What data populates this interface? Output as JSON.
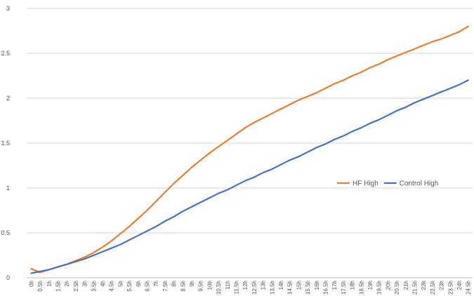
{
  "chart_data": {
    "type": "line",
    "title": "",
    "xlabel": "",
    "ylabel": "",
    "ylim": [
      0,
      3
    ],
    "yticks": [
      0,
      0.5,
      1,
      1.5,
      2,
      2.5,
      3
    ],
    "ytick_labels": [
      "0",
      "0.5",
      "1",
      "1.5",
      "2",
      "2.5",
      "3"
    ],
    "grid": "horizontal",
    "legend_position": "right",
    "categories": [
      "0h",
      "0.5h",
      "1h",
      "1.5h",
      "2h",
      "2.5h",
      "3h",
      "3.5h",
      "4h",
      "4.5h",
      "5h",
      "5.5h",
      "6h",
      "6.5h",
      "7h",
      "7.5h",
      "8h",
      "8.5h",
      "9h",
      "9.5h",
      "10h",
      "10.5h",
      "11h",
      "11.5h",
      "12h",
      "12.5h",
      "13h",
      "13.5h",
      "14h",
      "14.5h",
      "15h",
      "15.5h",
      "16h",
      "16.5h",
      "17h",
      "17.5h",
      "18h",
      "18.5h",
      "19h",
      "19.5h",
      "20h",
      "20.5h",
      "21h",
      "21.5h",
      "22h",
      "22.5h",
      "23h",
      "23.5h",
      "24h",
      "24.5h"
    ],
    "series": [
      {
        "name": "HF High",
        "color": "#ED7D31",
        "values": [
          0.1,
          0.06,
          0.09,
          0.12,
          0.15,
          0.19,
          0.23,
          0.28,
          0.34,
          0.41,
          0.49,
          0.57,
          0.66,
          0.75,
          0.85,
          0.95,
          1.05,
          1.14,
          1.23,
          1.31,
          1.39,
          1.46,
          1.53,
          1.6,
          1.67,
          1.73,
          1.78,
          1.83,
          1.88,
          1.93,
          1.98,
          2.02,
          2.06,
          2.11,
          2.16,
          2.2,
          2.25,
          2.29,
          2.34,
          2.38,
          2.43,
          2.47,
          2.51,
          2.55,
          2.59,
          2.63,
          2.66,
          2.7,
          2.74,
          2.8
        ]
      },
      {
        "name": "Control High",
        "color": "#4472C4",
        "values": [
          0.05,
          0.07,
          0.09,
          0.12,
          0.15,
          0.18,
          0.21,
          0.25,
          0.29,
          0.33,
          0.37,
          0.42,
          0.47,
          0.52,
          0.57,
          0.63,
          0.68,
          0.74,
          0.79,
          0.84,
          0.89,
          0.94,
          0.98,
          1.03,
          1.08,
          1.12,
          1.17,
          1.21,
          1.26,
          1.31,
          1.35,
          1.4,
          1.45,
          1.49,
          1.54,
          1.58,
          1.63,
          1.67,
          1.72,
          1.76,
          1.81,
          1.86,
          1.9,
          1.95,
          1.99,
          2.03,
          2.07,
          2.11,
          2.15,
          2.2
        ]
      }
    ]
  }
}
